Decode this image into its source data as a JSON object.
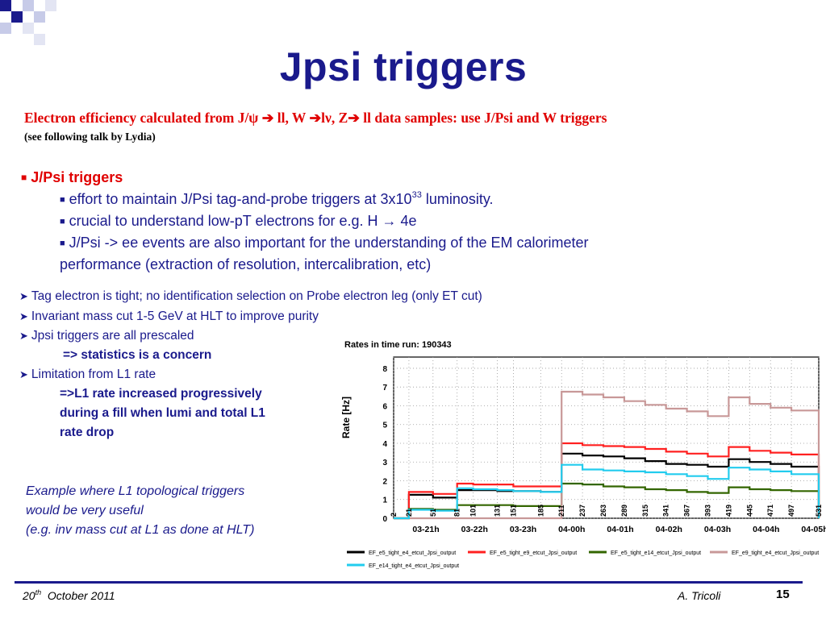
{
  "slide": {
    "title": "Jpsi triggers",
    "subtitle": "Electron efficiency calculated from J/ψ ➔ ll, W ➔lν, Z➔ ll data samples: use J/Psi and W triggers",
    "subnote": "(see following talk by Lydia)",
    "heading": "J/Psi triggers",
    "bullets": {
      "b1_pre": "effort to maintain J/Psi tag-and-probe triggers at 3x10",
      "b1_sup": "33",
      "b1_post": " luminosity.",
      "b2": "crucial to understand low-pT electrons for e.g. H → 4e",
      "b3_line1": "J/Psi -> ee events are also important for the understanding of the EM calorimeter",
      "b3_line2": "performance (extraction of resolution, intercalibration, etc)"
    },
    "points": {
      "p1": "Tag electron is tight; no identification selection on Probe electron leg (only ET cut)",
      "p2": "Invariant mass cut 1-5 GeV at HLT to improve purity",
      "p3": "Jpsi triggers are all prescaled",
      "p3_sub": "=> statistics is a concern",
      "p4": "Limitation from L1 rate",
      "p4_sub1": "=>L1 rate increased progressively",
      "p4_sub2": "during a fill when lumi and total L1",
      "p4_sub3": "rate drop"
    },
    "note": {
      "line1": "Example where L1 topological triggers",
      "line2": "would be very useful",
      "line3": "(e.g. inv mass cut at L1 as done at HLT)"
    },
    "footer": {
      "date_day": "20",
      "date_sup": "th",
      "date_rest": "  October 2011",
      "author": "A. Tricoli",
      "page": "15"
    }
  },
  "colors": {
    "title_blue": "#1a1a8c",
    "subtitle_red": "#e00000"
  },
  "chart_data": {
    "type": "line",
    "title": "Rates in time  run: 190343",
    "ylabel": "Rate [Hz]",
    "xlabel": "",
    "ylim": [
      0,
      8.6
    ],
    "yticks": [
      "0",
      "1",
      "2",
      "3",
      "4",
      "5",
      "6",
      "7",
      "8"
    ],
    "x_time_labels": [
      "03-21h",
      "03-22h",
      "03-23h",
      "04-00h",
      "04-01h",
      "04-02h",
      "04-03h",
      "04-04h",
      "04-05h"
    ],
    "x_lumiblock_labels": [
      "2",
      "21",
      "51",
      "81",
      "101",
      "131",
      "151",
      "185",
      "211",
      "237",
      "263",
      "289",
      "315",
      "341",
      "367",
      "393",
      "419",
      "445",
      "471",
      "497",
      "531"
    ],
    "grid": true,
    "legend_placement": "bottom",
    "x": [
      2,
      21,
      51,
      81,
      101,
      131,
      151,
      185,
      211,
      237,
      263,
      289,
      315,
      341,
      367,
      393,
      419,
      445,
      471,
      497,
      531
    ],
    "series": [
      {
        "name": "EF_e5_tight_e4_etcut_Jpsi_output",
        "color": "#000000",
        "values": [
          0.0,
          1.25,
          1.1,
          1.5,
          1.5,
          1.45,
          1.45,
          1.4,
          3.45,
          3.35,
          3.3,
          3.2,
          3.05,
          2.9,
          2.85,
          2.75,
          3.15,
          3.0,
          2.9,
          2.75,
          0.0
        ]
      },
      {
        "name": "EF_e5_tight_e9_etcut_Jpsi_output",
        "color": "#ff2020",
        "values": [
          0.0,
          1.4,
          1.3,
          1.85,
          1.8,
          1.8,
          1.7,
          1.7,
          4.0,
          3.9,
          3.85,
          3.8,
          3.7,
          3.55,
          3.45,
          3.3,
          3.8,
          3.6,
          3.5,
          3.4,
          0.0
        ]
      },
      {
        "name": "EF_e5_tight_e14_etcut_Jpsi_output",
        "color": "#336600",
        "values": [
          0.0,
          0.5,
          0.45,
          0.7,
          0.7,
          0.7,
          0.65,
          0.65,
          1.85,
          1.8,
          1.7,
          1.65,
          1.55,
          1.5,
          1.4,
          1.35,
          1.65,
          1.55,
          1.5,
          1.45,
          0.0
        ]
      },
      {
        "name": "EF_e9_tight_e4_etcut_Jpsi_output",
        "color": "#c89898",
        "values": [
          0.0,
          0.0,
          0.0,
          0.0,
          0.0,
          0.0,
          0.0,
          0.0,
          6.75,
          6.6,
          6.45,
          6.25,
          6.05,
          5.85,
          5.7,
          5.45,
          6.45,
          6.1,
          5.9,
          5.75,
          0.0
        ]
      },
      {
        "name": "EF_e14_tight_e4_etcut_Jpsi_output",
        "color": "#22ccee",
        "values": [
          0.0,
          0.45,
          0.4,
          1.6,
          1.55,
          1.5,
          1.45,
          1.4,
          2.85,
          2.6,
          2.55,
          2.5,
          2.45,
          2.35,
          2.25,
          2.1,
          2.7,
          2.6,
          2.5,
          2.35,
          0.0
        ]
      }
    ]
  }
}
